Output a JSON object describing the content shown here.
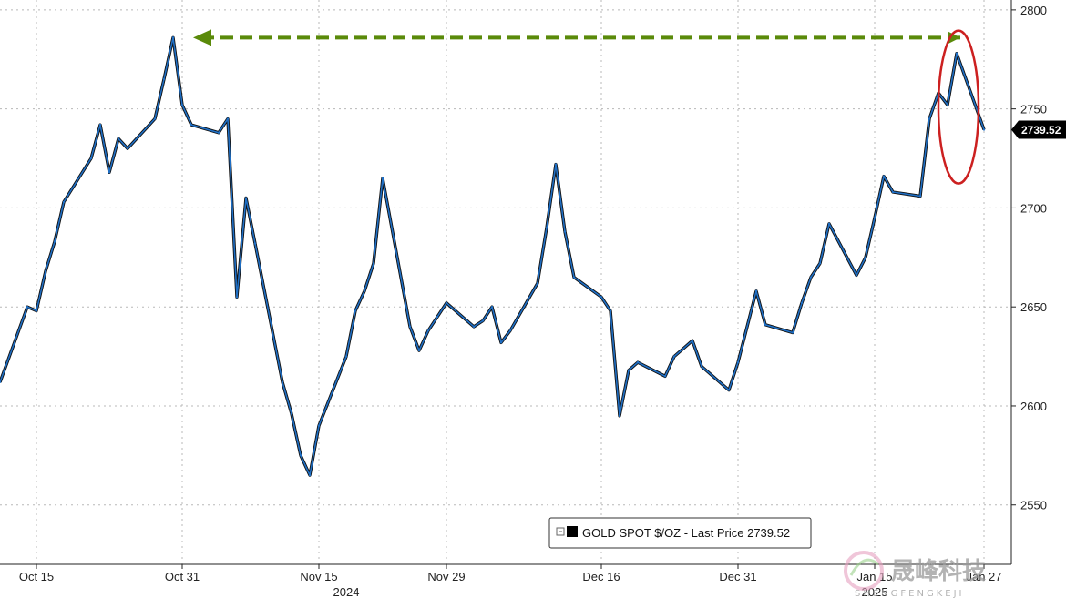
{
  "chart_data": {
    "type": "line",
    "series": [
      {
        "name": "GOLD SPOT $/OZ",
        "color": "#1f6fc5",
        "x": [
          "2024-10-11",
          "2024-10-14",
          "2024-10-15",
          "2024-10-16",
          "2024-10-17",
          "2024-10-18",
          "2024-10-21",
          "2024-10-22",
          "2024-10-23",
          "2024-10-24",
          "2024-10-25",
          "2024-10-28",
          "2024-10-29",
          "2024-10-30",
          "2024-10-31",
          "2024-11-01",
          "2024-11-04",
          "2024-11-05",
          "2024-11-06",
          "2024-11-07",
          "2024-11-08",
          "2024-11-11",
          "2024-11-12",
          "2024-11-13",
          "2024-11-14",
          "2024-11-15",
          "2024-11-18",
          "2024-11-19",
          "2024-11-20",
          "2024-11-21",
          "2024-11-22",
          "2024-11-25",
          "2024-11-26",
          "2024-11-27",
          "2024-11-28",
          "2024-11-29",
          "2024-12-02",
          "2024-12-03",
          "2024-12-04",
          "2024-12-05",
          "2024-12-06",
          "2024-12-09",
          "2024-12-10",
          "2024-12-11",
          "2024-12-12",
          "2024-12-13",
          "2024-12-16",
          "2024-12-17",
          "2024-12-18",
          "2024-12-19",
          "2024-12-20",
          "2024-12-23",
          "2024-12-24",
          "2024-12-26",
          "2024-12-27",
          "2024-12-30",
          "2024-12-31",
          "2025-01-02",
          "2025-01-03",
          "2025-01-06",
          "2025-01-07",
          "2025-01-08",
          "2025-01-09",
          "2025-01-10",
          "2025-01-13",
          "2025-01-14",
          "2025-01-15",
          "2025-01-16",
          "2025-01-17",
          "2025-01-20",
          "2025-01-21",
          "2025-01-22",
          "2025-01-23",
          "2025-01-24",
          "2025-01-27"
        ],
        "values": [
          2612,
          2650,
          2648,
          2668,
          2683,
          2703,
          2725,
          2742,
          2718,
          2735,
          2730,
          2745,
          2765,
          2786,
          2752,
          2742,
          2738,
          2745,
          2655,
          2705,
          2682,
          2612,
          2596,
          2575,
          2565,
          2590,
          2625,
          2648,
          2658,
          2672,
          2715,
          2640,
          2628,
          2638,
          2645,
          2652,
          2640,
          2643,
          2650,
          2632,
          2638,
          2662,
          2690,
          2722,
          2688,
          2665,
          2655,
          2648,
          2595,
          2618,
          2622,
          2615,
          2625,
          2633,
          2620,
          2608,
          2622,
          2658,
          2641,
          2637,
          2652,
          2665,
          2672,
          2692,
          2666,
          2675,
          2695,
          2716,
          2708,
          2706,
          2745,
          2758,
          2752,
          2778,
          2739.52
        ]
      }
    ],
    "ylim": [
      2520,
      2805
    ],
    "yticks": [
      2550,
      2600,
      2650,
      2700,
      2750,
      2800
    ],
    "ytick_labels": [
      "2550",
      "2600",
      "2650",
      "2700",
      "2750",
      "2800"
    ],
    "xticks": [
      "2024-10-15",
      "2024-10-31",
      "2024-11-15",
      "2024-11-29",
      "2024-12-16",
      "2024-12-31",
      "2025-01-15",
      "2025-01-27"
    ],
    "xtick_labels": [
      "Oct 15",
      "Oct 31",
      "Nov 15",
      "Nov 29",
      "Dec 16",
      "Dec 31",
      "Jan 15",
      "Jan 27"
    ],
    "year_labels": [
      {
        "label": "2024",
        "date": "2024-11-18"
      },
      {
        "label": "2025",
        "date": "2025-01-15"
      }
    ],
    "last_price_label": "2739.52",
    "legend": {
      "position": "bottom-center",
      "text": "GOLD SPOT $/OZ - Last Price 2739.52"
    },
    "annotations": {
      "arrow": {
        "from_date": "2025-01-24",
        "to_date": "2024-11-01",
        "level": 2786,
        "color": "#5a8a0a",
        "style": "dashed"
      },
      "ellipse": {
        "date": "2025-01-24",
        "level": 2750,
        "color": "#cc2020"
      }
    },
    "grid": true,
    "axis_position": "right"
  },
  "watermark": {
    "text": "晟峰科技",
    "subtext": "SHENGFENGKEJI"
  }
}
